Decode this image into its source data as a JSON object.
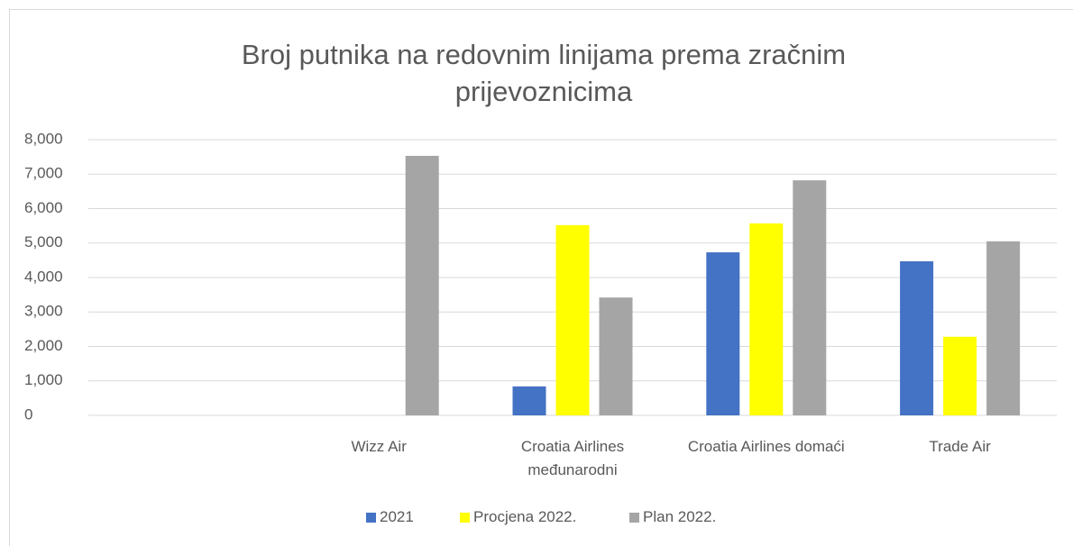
{
  "chart_data": {
    "type": "bar",
    "title": "Broj putnika na redovnim linijama prema zračnim prijevoznicima",
    "categories": [
      null,
      "Wizz Air",
      "Croatia Airlines međunarodni",
      "Croatia Airlines domaći",
      "Trade Air"
    ],
    "series": [
      {
        "name": "2021",
        "color": "#4472c4",
        "values": [
          null,
          null,
          840,
          4730,
          4470
        ]
      },
      {
        "name": "Procjena 2022.",
        "color": "#ffff00",
        "values": [
          null,
          null,
          5520,
          5570,
          2280
        ]
      },
      {
        "name": "Plan 2022.",
        "color": "#a5a5a5",
        "values": [
          null,
          7530,
          3420,
          6820,
          5050
        ]
      }
    ],
    "ylim": [
      0,
      8000
    ],
    "yticks": [
      0,
      {
        "value": 1000,
        "label": "1,000"
      },
      {
        "value": 2000,
        "label": "2,000"
      },
      {
        "value": 3000,
        "label": "3,000"
      },
      {
        "value": 4000,
        "label": "4,000"
      },
      {
        "value": 5000,
        "label": "5,000"
      },
      {
        "value": 6000,
        "label": "6,000"
      },
      {
        "value": 7000,
        "label": "7,000"
      },
      {
        "value": 8000,
        "label": "8,000"
      }
    ],
    "grid": true,
    "legend": "bottom"
  }
}
